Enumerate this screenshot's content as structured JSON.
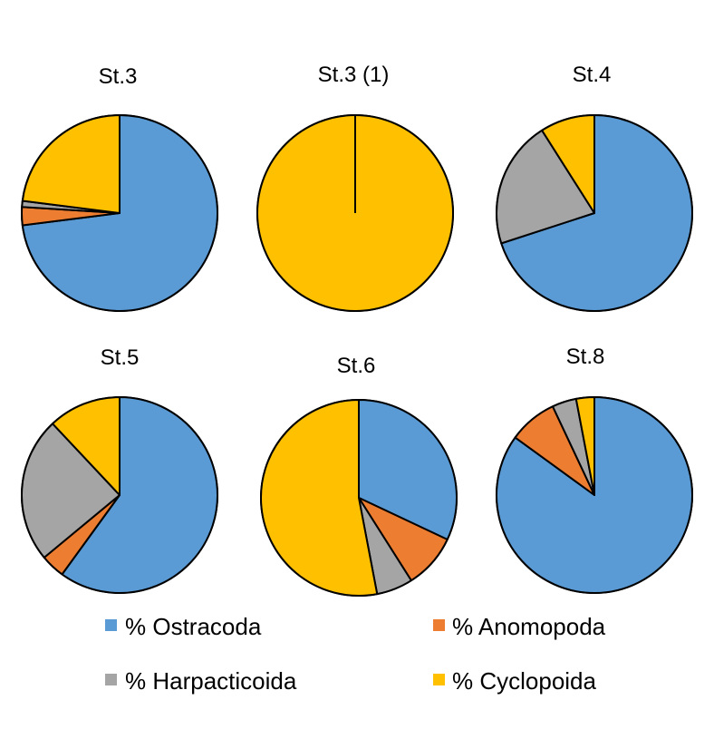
{
  "chart_data": {
    "type": "pie",
    "categories": [
      "% Ostracoda",
      "% Anomopoda",
      "% Harpacticoida",
      "% Cyclopoida"
    ],
    "colors": [
      "#5B9BD5",
      "#ED7D31",
      "#A5A5A5",
      "#FFC000"
    ],
    "pies": [
      {
        "title": "St.3",
        "values": [
          73,
          3,
          1,
          23
        ]
      },
      {
        "title": "St.3 (1)",
        "values": [
          0,
          0,
          0,
          100
        ]
      },
      {
        "title": "St.4",
        "values": [
          70,
          0,
          21,
          9
        ]
      },
      {
        "title": "St.5",
        "values": [
          60,
          4,
          24,
          12
        ]
      },
      {
        "title": "St.6",
        "values": [
          32,
          9,
          6,
          53
        ]
      },
      {
        "title": "St.8",
        "values": [
          85,
          8,
          4,
          3
        ]
      }
    ],
    "legend": {
      "placement": "bottom",
      "items": [
        "% Ostracoda",
        "% Anomopoda",
        "% Harpacticoida",
        "% Cyclopoida"
      ]
    }
  }
}
